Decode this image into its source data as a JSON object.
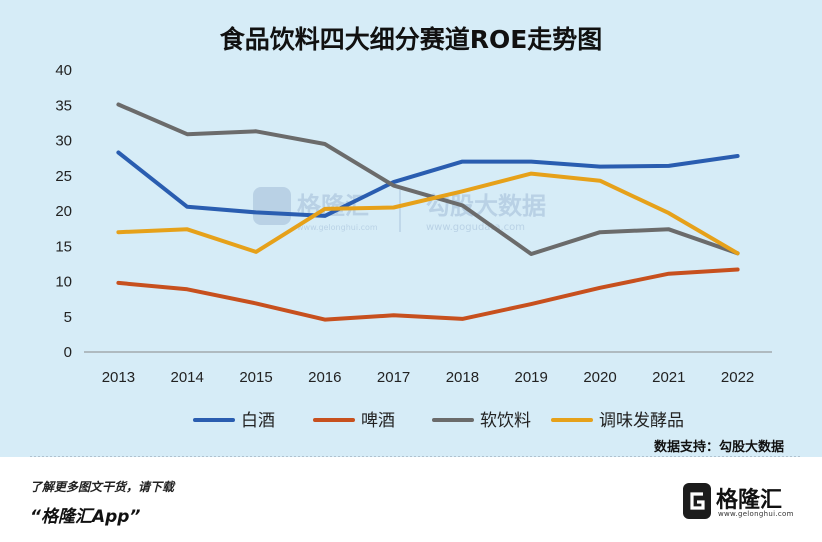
{
  "chart_data": {
    "type": "line",
    "title": "食品饮料四大细分赛道ROE走势图",
    "categories": [
      "2013",
      "2014",
      "2015",
      "2016",
      "2017",
      "2018",
      "2019",
      "2020",
      "2021",
      "2022"
    ],
    "ylim": [
      0,
      40
    ],
    "yticks": [
      "0",
      "5",
      "10",
      "15",
      "20",
      "25",
      "30",
      "35",
      "40"
    ],
    "legend_position": "bottom",
    "grid": false,
    "series": [
      {
        "name": "白酒",
        "color": "#2a5db0",
        "values": [
          28.3,
          20.6,
          19.8,
          19.3,
          24.1,
          27.0,
          27.0,
          26.3,
          26.4,
          27.8
        ]
      },
      {
        "name": "啤酒",
        "color": "#c7501e",
        "values": [
          9.8,
          8.9,
          6.9,
          4.6,
          5.2,
          4.7,
          6.8,
          9.1,
          11.1,
          11.7
        ]
      },
      {
        "name": "软饮料",
        "color": "#6b6b6b",
        "values": [
          35.1,
          30.9,
          31.3,
          29.5,
          23.6,
          20.8,
          13.9,
          17.0,
          17.4,
          14.0
        ]
      },
      {
        "name": "调味发酵品",
        "color": "#e6a11a",
        "values": [
          17.0,
          17.4,
          14.2,
          20.3,
          20.5,
          22.8,
          25.3,
          24.3,
          19.7,
          14.0
        ]
      }
    ]
  },
  "source_label": "数据支持：勾股大数据",
  "footer": {
    "promo": "了解更多图文干货，请下载",
    "app": "“格隆汇App”",
    "brand_name": "格隆汇",
    "brand_url": "www.gelonghui.com"
  },
  "watermark": {
    "left_name": "格隆汇",
    "left_url": "www.gelonghui.com",
    "right_name": "勾股大数据",
    "right_url": "www.gogudata.com"
  }
}
